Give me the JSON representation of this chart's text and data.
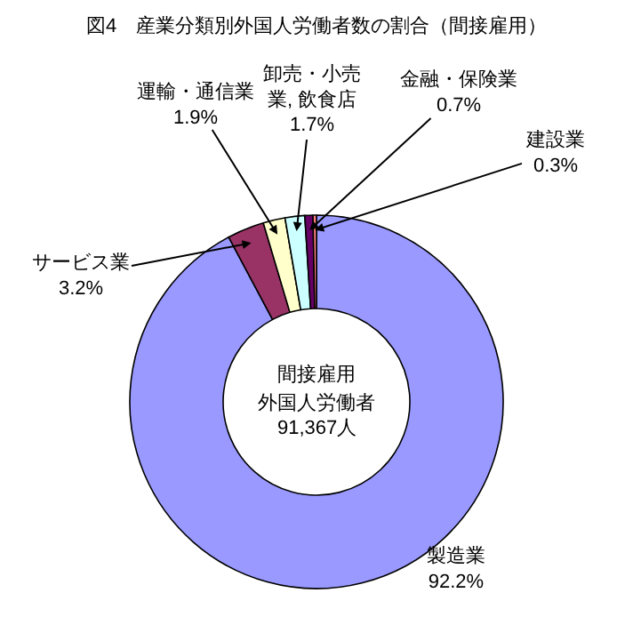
{
  "chart_data": {
    "type": "donut",
    "title": "図4　産業分類別外国人労働者数の割合（間接雇用）",
    "categories": [
      "製造業",
      "サービス業",
      "運輸・通信業",
      "卸売・小売業, 飲食店",
      "金融・保険業",
      "建設業"
    ],
    "values": [
      92.2,
      3.2,
      1.9,
      1.7,
      0.7,
      0.3
    ],
    "value_labels": [
      "92.2%",
      "3.2%",
      "1.9%",
      "1.7%",
      "0.7%",
      "0.3%"
    ],
    "colors": [
      "#9999ff",
      "#993366",
      "#ffffcc",
      "#ccffff",
      "#660066",
      "#ff8080"
    ],
    "annotations": [
      "間接雇用",
      "外国人労働者",
      "91,367人"
    ],
    "legend": false
  }
}
